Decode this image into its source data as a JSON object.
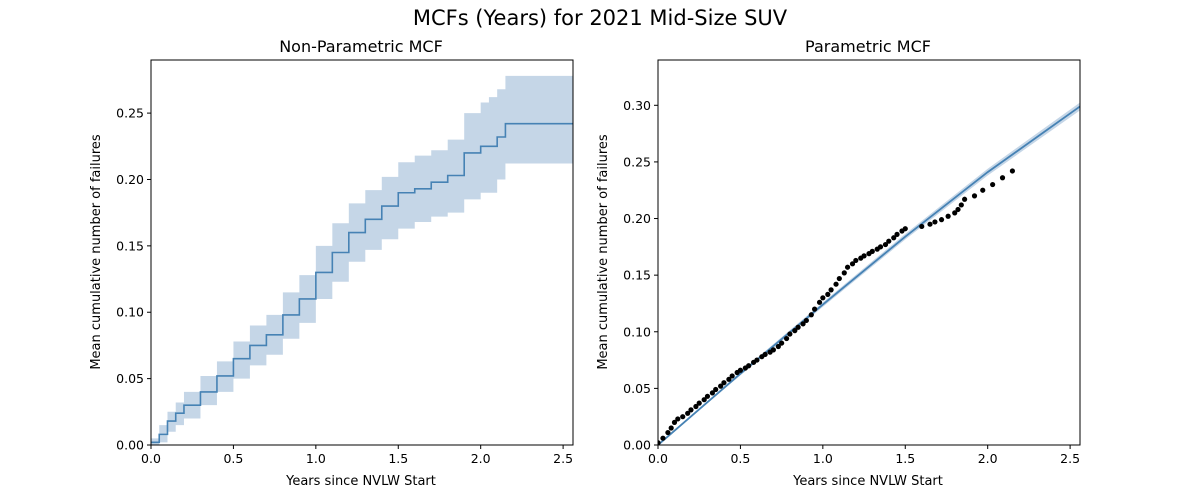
{
  "figure": {
    "title": "MCFs (Years) for 2021 Mid-Size SUV"
  },
  "colors": {
    "line": "#4682b4",
    "band": "#c5d6e7",
    "points": "#000000"
  },
  "chart_data": [
    {
      "type": "line",
      "title": "Non-Parametric MCF",
      "xlabel": "Years since NVLW Start",
      "ylabel": "Mean cumulative number of failures",
      "xlim": [
        0,
        2.56
      ],
      "ylim": [
        0,
        0.29
      ],
      "xticks": [
        0.0,
        0.5,
        1.0,
        1.5,
        2.0,
        2.5
      ],
      "xtick_labels": [
        "0.0",
        "0.5",
        "1.0",
        "1.5",
        "2.0",
        "2.5"
      ],
      "yticks": [
        0.0,
        0.05,
        0.1,
        0.15,
        0.2,
        0.25
      ],
      "ytick_labels": [
        "0.00",
        "0.05",
        "0.10",
        "0.15",
        "0.20",
        "0.25"
      ],
      "grid": false,
      "series": [
        {
          "kind": "step-with-confidence-band",
          "x": [
            0.0,
            0.05,
            0.1,
            0.15,
            0.2,
            0.3,
            0.4,
            0.5,
            0.6,
            0.7,
            0.8,
            0.9,
            1.0,
            1.1,
            1.2,
            1.3,
            1.4,
            1.5,
            1.6,
            1.7,
            1.8,
            1.9,
            2.0,
            2.05,
            2.1,
            2.15,
            2.56
          ],
          "y": [
            0.002,
            0.008,
            0.018,
            0.024,
            0.03,
            0.04,
            0.052,
            0.065,
            0.075,
            0.083,
            0.098,
            0.11,
            0.13,
            0.145,
            0.16,
            0.17,
            0.18,
            0.19,
            0.193,
            0.198,
            0.203,
            0.22,
            0.225,
            0.225,
            0.232,
            0.242,
            0.242
          ],
          "lower": [
            0.0,
            0.002,
            0.01,
            0.015,
            0.02,
            0.03,
            0.04,
            0.05,
            0.06,
            0.068,
            0.08,
            0.092,
            0.11,
            0.123,
            0.138,
            0.147,
            0.155,
            0.163,
            0.168,
            0.172,
            0.175,
            0.185,
            0.19,
            0.19,
            0.2,
            0.212,
            0.212
          ],
          "upper": [
            0.005,
            0.015,
            0.025,
            0.032,
            0.04,
            0.052,
            0.063,
            0.078,
            0.09,
            0.098,
            0.115,
            0.128,
            0.15,
            0.167,
            0.182,
            0.192,
            0.202,
            0.213,
            0.218,
            0.222,
            0.23,
            0.25,
            0.258,
            0.262,
            0.268,
            0.278,
            0.278
          ]
        }
      ]
    },
    {
      "type": "scatter",
      "title": "Parametric MCF",
      "xlabel": "Years since NVLW Start",
      "ylabel": "Mean cumulative number of failures",
      "xlim": [
        0,
        2.56
      ],
      "ylim": [
        0,
        0.34
      ],
      "xticks": [
        0.0,
        0.5,
        1.0,
        1.5,
        2.0,
        2.5
      ],
      "xtick_labels": [
        "0.0",
        "0.5",
        "1.0",
        "1.5",
        "2.0",
        "2.5"
      ],
      "yticks": [
        0.0,
        0.05,
        0.1,
        0.15,
        0.2,
        0.25,
        0.3
      ],
      "ytick_labels": [
        "0.00",
        "0.05",
        "0.10",
        "0.15",
        "0.20",
        "0.25",
        "0.30"
      ],
      "grid": false,
      "series": [
        {
          "kind": "points",
          "x": [
            0.0,
            0.03,
            0.06,
            0.08,
            0.1,
            0.12,
            0.15,
            0.18,
            0.2,
            0.23,
            0.25,
            0.28,
            0.3,
            0.33,
            0.35,
            0.38,
            0.4,
            0.43,
            0.45,
            0.48,
            0.5,
            0.53,
            0.55,
            0.58,
            0.6,
            0.63,
            0.65,
            0.68,
            0.7,
            0.73,
            0.75,
            0.78,
            0.8,
            0.83,
            0.85,
            0.88,
            0.9,
            0.93,
            0.95,
            0.98,
            1.0,
            1.03,
            1.05,
            1.08,
            1.1,
            1.13,
            1.15,
            1.18,
            1.2,
            1.23,
            1.25,
            1.28,
            1.3,
            1.33,
            1.35,
            1.38,
            1.4,
            1.43,
            1.45,
            1.48,
            1.5,
            1.6,
            1.65,
            1.68,
            1.72,
            1.76,
            1.8,
            1.82,
            1.84,
            1.86,
            1.92,
            1.97,
            2.03,
            2.09,
            2.15
          ],
          "y": [
            0.002,
            0.006,
            0.011,
            0.015,
            0.02,
            0.023,
            0.025,
            0.028,
            0.031,
            0.034,
            0.037,
            0.04,
            0.043,
            0.046,
            0.049,
            0.052,
            0.055,
            0.058,
            0.061,
            0.064,
            0.066,
            0.068,
            0.07,
            0.073,
            0.075,
            0.078,
            0.08,
            0.082,
            0.084,
            0.087,
            0.09,
            0.094,
            0.098,
            0.101,
            0.104,
            0.107,
            0.11,
            0.115,
            0.12,
            0.126,
            0.13,
            0.133,
            0.137,
            0.142,
            0.147,
            0.152,
            0.157,
            0.16,
            0.163,
            0.165,
            0.167,
            0.169,
            0.171,
            0.173,
            0.175,
            0.177,
            0.18,
            0.183,
            0.186,
            0.189,
            0.191,
            0.193,
            0.195,
            0.197,
            0.199,
            0.202,
            0.205,
            0.208,
            0.212,
            0.217,
            0.22,
            0.225,
            0.23,
            0.236,
            0.242
          ]
        },
        {
          "kind": "fitted-line-with-band",
          "x": [
            0.0,
            0.5,
            1.0,
            1.5,
            2.0,
            2.56
          ],
          "y": [
            0.0,
            0.063,
            0.124,
            0.184,
            0.241,
            0.299
          ],
          "band_halfwidth": [
            0.0,
            0.0015,
            0.002,
            0.0025,
            0.003,
            0.0035
          ]
        }
      ]
    }
  ]
}
